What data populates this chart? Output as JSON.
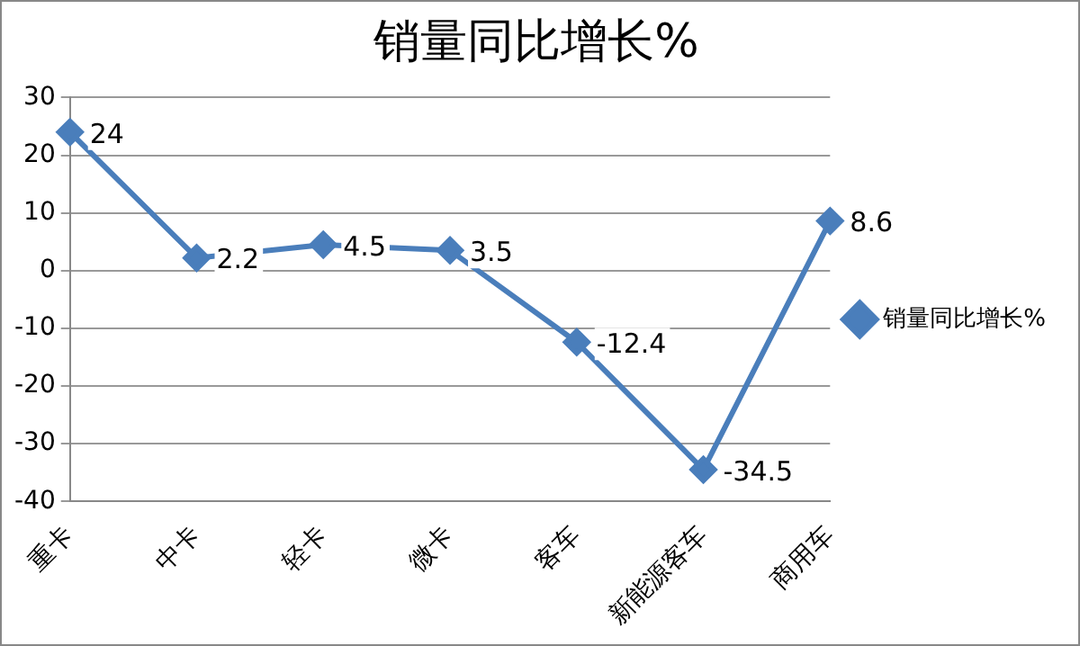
{
  "chart_data": {
    "type": "line",
    "title": "销量同比增长%",
    "categories": [
      "重卡",
      "中卡",
      "轻卡",
      "微卡",
      "客车",
      "新能源客车",
      "商用车"
    ],
    "series": [
      {
        "name": "销量同比增长%",
        "color": "#4a7ebb",
        "values": [
          24,
          2.2,
          4.5,
          3.5,
          -12.4,
          -34.5,
          8.6
        ]
      }
    ],
    "ylim": [
      -40,
      30
    ],
    "yticks": [
      -40,
      -30,
      -20,
      -10,
      0,
      10,
      20,
      30
    ],
    "grid": "y",
    "legend": "right",
    "marker": "diamond",
    "line_style": "solid",
    "data_labels": true
  }
}
